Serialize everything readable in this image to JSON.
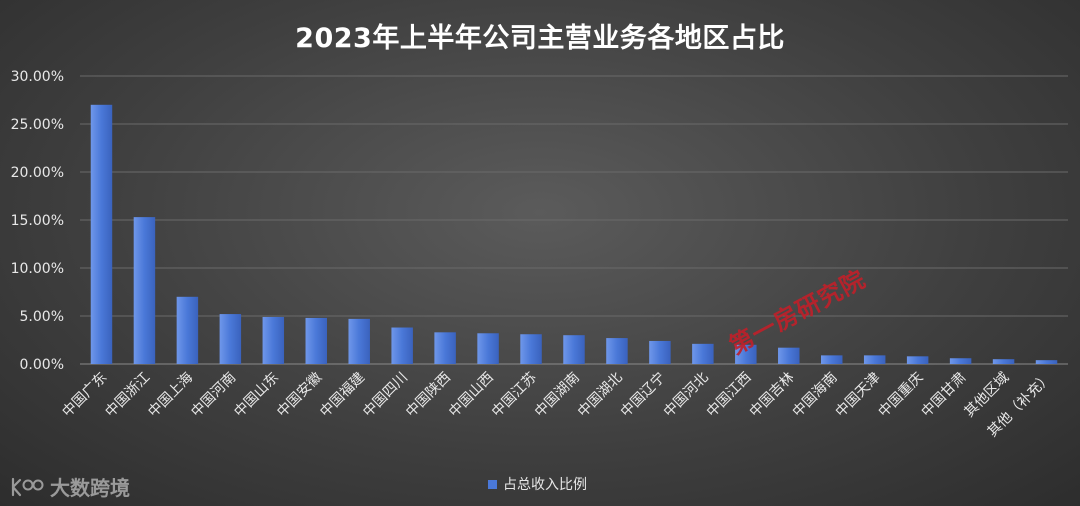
{
  "title": "2023年上半年公司主营业务各地区占比",
  "legend_label": "占总收入比例",
  "logo_text": "大数跨境",
  "watermark_text": "第一房研究院",
  "colors": {
    "bar": "#4a78d8",
    "bar_light": "#6f97ea",
    "grid": "#6a6a6a",
    "axis": "#8a8a8a"
  },
  "chart_data": {
    "type": "bar",
    "title": "2023年上半年公司主营业务各地区占比",
    "categories": [
      "中国广东",
      "中国浙江",
      "中国上海",
      "中国河南",
      "中国山东",
      "中国安徽",
      "中国福建",
      "中国四川",
      "中国陕西",
      "中国山西",
      "中国江苏",
      "中国湖南",
      "中国湖北",
      "中国辽宁",
      "中国河北",
      "中国江西",
      "中国吉林",
      "中国海南",
      "中国天津",
      "中国重庆",
      "中国甘肃",
      "其他区域",
      "其他（补充）"
    ],
    "series": [
      {
        "name": "占总收入比例",
        "values": [
          27.0,
          15.3,
          7.0,
          5.2,
          4.9,
          4.8,
          4.7,
          3.8,
          3.3,
          3.2,
          3.1,
          3.0,
          2.7,
          2.4,
          2.1,
          2.0,
          1.7,
          0.9,
          0.9,
          0.8,
          0.6,
          0.5,
          0.4
        ]
      }
    ],
    "yticks": [
      "0.00%",
      "5.00%",
      "10.00%",
      "15.00%",
      "20.00%",
      "25.00%",
      "30.00%"
    ],
    "ylim": [
      0,
      30
    ],
    "grid": true,
    "legend_position": "bottom"
  }
}
